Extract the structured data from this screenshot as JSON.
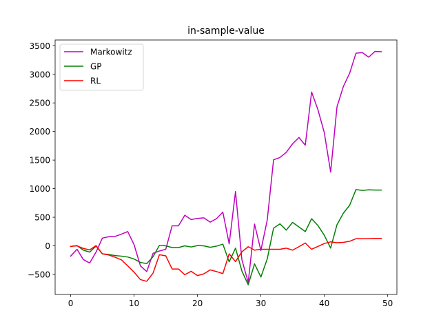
{
  "chart_data": {
    "type": "line",
    "title": "in-sample-value",
    "xlabel": "",
    "ylabel": "",
    "xlim": [
      -2.45,
      51.45
    ],
    "ylim": [
      -850,
      3600
    ],
    "xticks": [
      0,
      10,
      20,
      30,
      40,
      50
    ],
    "yticks": [
      -500,
      0,
      500,
      1000,
      1500,
      2000,
      2500,
      3000,
      3500
    ],
    "grid": false,
    "legend_position": "top-left",
    "x": [
      0,
      1,
      2,
      3,
      4,
      5,
      6,
      7,
      8,
      9,
      10,
      11,
      12,
      13,
      14,
      15,
      16,
      17,
      18,
      19,
      20,
      21,
      22,
      23,
      24,
      25,
      26,
      27,
      28,
      29,
      30,
      31,
      32,
      33,
      34,
      35,
      36,
      37,
      38,
      39,
      40,
      41,
      42,
      43,
      44,
      45,
      46,
      47,
      48,
      49
    ],
    "series": [
      {
        "name": "Markowitz",
        "color": "#bf00bf",
        "values": [
          -180,
          -60,
          -240,
          -300,
          -110,
          135,
          160,
          165,
          205,
          250,
          20,
          -350,
          -450,
          -130,
          -90,
          -60,
          350,
          350,
          535,
          460,
          480,
          490,
          415,
          475,
          590,
          35,
          950,
          -240,
          -640,
          380,
          -80,
          450,
          1505,
          1545,
          1635,
          1785,
          1895,
          1760,
          2690,
          2380,
          1980,
          1290,
          2430,
          2785,
          3020,
          3370,
          3380,
          3300,
          3400,
          3395
        ]
      },
      {
        "name": "GP",
        "color": "#008000",
        "values": [
          -10,
          5,
          -75,
          -110,
          -5,
          -140,
          -150,
          -170,
          -180,
          -195,
          -230,
          -290,
          -310,
          -190,
          10,
          0,
          -30,
          -30,
          0,
          -20,
          5,
          0,
          -25,
          -5,
          30,
          -280,
          -40,
          -440,
          -680,
          -315,
          -545,
          -230,
          310,
          385,
          275,
          410,
          330,
          250,
          475,
          355,
          185,
          -40,
          370,
          570,
          710,
          985,
          970,
          980,
          975,
          975
        ]
      },
      {
        "name": "RL",
        "color": "#ff0000",
        "values": [
          -10,
          0,
          -45,
          -70,
          5,
          -140,
          -160,
          -200,
          -245,
          -350,
          -460,
          -590,
          -620,
          -475,
          -155,
          -175,
          -405,
          -405,
          -505,
          -445,
          -520,
          -490,
          -420,
          -450,
          -485,
          -140,
          -275,
          -105,
          -15,
          -75,
          -60,
          -60,
          -60,
          -60,
          -40,
          -75,
          -15,
          50,
          -60,
          -10,
          40,
          70,
          55,
          60,
          80,
          125,
          125,
          125,
          130,
          130
        ]
      }
    ]
  }
}
